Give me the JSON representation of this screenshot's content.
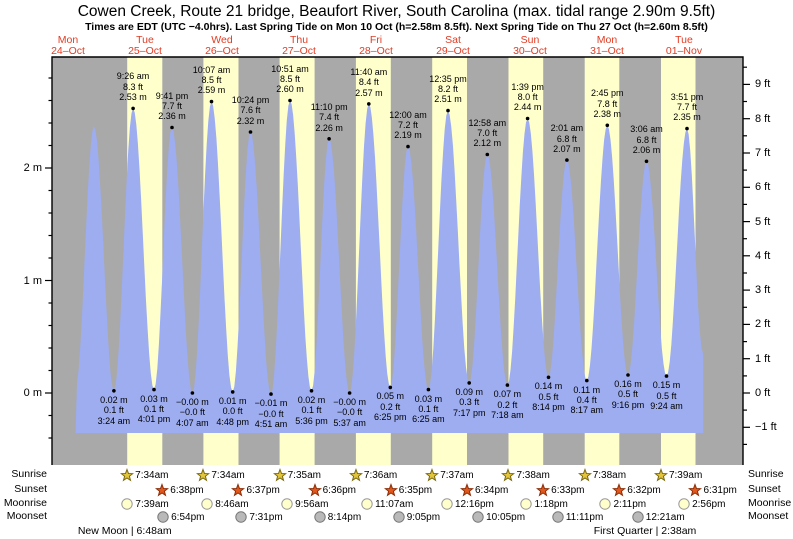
{
  "title": "Cowen Creek, Route 21 bridge, Beaufort River, South Carolina (max. tidal range 2.90m 9.5ft)",
  "subtitle": "Times are EDT (UTC −4.0hrs). Last Spring Tide on Mon 10 Oct (h=2.58m 8.5ft). Next Spring Tide on Thu 27 Oct (h=2.60m 8.5ft)",
  "days": [
    {
      "name": "Mon",
      "date": "24–Oct"
    },
    {
      "name": "Tue",
      "date": "25–Oct"
    },
    {
      "name": "Wed",
      "date": "26–Oct"
    },
    {
      "name": "Thu",
      "date": "27–Oct"
    },
    {
      "name": "Fri",
      "date": "28–Oct"
    },
    {
      "name": "Sat",
      "date": "29–Oct"
    },
    {
      "name": "Sun",
      "date": "30–Oct"
    },
    {
      "name": "Mon",
      "date": "31–Oct"
    },
    {
      "name": "Tue",
      "date": "01–Nov"
    }
  ],
  "axes": {
    "left_major": [
      {
        "label": "0 m",
        "v": 0
      },
      {
        "label": "1 m",
        "v": 1
      },
      {
        "label": "2 m",
        "v": 2
      }
    ],
    "right_major": [
      {
        "label": "−1 ft",
        "f": -1
      },
      {
        "label": "0 ft",
        "f": 0
      },
      {
        "label": "1 ft",
        "f": 1
      },
      {
        "label": "2 ft",
        "f": 2
      },
      {
        "label": "3 ft",
        "f": 3
      },
      {
        "label": "4 ft",
        "f": 4
      },
      {
        "label": "5 ft",
        "f": 5
      },
      {
        "label": "6 ft",
        "f": 6
      },
      {
        "label": "7 ft",
        "f": 7
      },
      {
        "label": "8 ft",
        "f": 8
      },
      {
        "label": "9 ft",
        "f": 9
      }
    ]
  },
  "chart_data": {
    "type": "area",
    "title": "Tide height curve, Mon 24-Oct noon through Tue 01-Nov",
    "ylabel_left": "meters",
    "ylabel_right": "feet",
    "ylim_m": [
      -0.36,
      2.99
    ],
    "t_unit": "hours after Mon 24-Oct 12:00",
    "highs": [
      {
        "time": "9:26 am",
        "ft": "8.3 ft",
        "m": "2.53 m",
        "t": 21.43,
        "v": 2.53
      },
      {
        "time": "9:41 pm",
        "ft": "7.7 ft",
        "m": "2.36 m",
        "t": 33.68,
        "v": 2.36
      },
      {
        "time": "10:07 am",
        "ft": "8.5 ft",
        "m": "2.59 m",
        "t": 46.12,
        "v": 2.59
      },
      {
        "time": "10:24 pm",
        "ft": "7.6 ft",
        "m": "2.32 m",
        "t": 58.4,
        "v": 2.32
      },
      {
        "time": "10:51 am",
        "ft": "8.5 ft",
        "m": "2.60 m",
        "t": 70.85,
        "v": 2.6
      },
      {
        "time": "11:10 pm",
        "ft": "7.4 ft",
        "m": "2.26 m",
        "t": 83.17,
        "v": 2.26
      },
      {
        "time": "11:40 am",
        "ft": "8.4 ft",
        "m": "2.57 m",
        "t": 95.67,
        "v": 2.57
      },
      {
        "time": "12:00 am",
        "ft": "7.2 ft",
        "m": "2.19 m",
        "t": 108.0,
        "v": 2.19
      },
      {
        "time": "12:35 pm",
        "ft": "8.2 ft",
        "m": "2.51 m",
        "t": 120.58,
        "v": 2.51
      },
      {
        "time": "12:58 am",
        "ft": "7.0 ft",
        "m": "2.12 m",
        "t": 132.97,
        "v": 2.12
      },
      {
        "time": "1:39 pm",
        "ft": "8.0 ft",
        "m": "2.44 m",
        "t": 145.65,
        "v": 2.44
      },
      {
        "time": "2:01 am",
        "ft": "6.8 ft",
        "m": "2.07 m",
        "t": 158.02,
        "v": 2.07
      },
      {
        "time": "2:45 pm",
        "ft": "7.8 ft",
        "m": "2.38 m",
        "t": 170.75,
        "v": 2.38
      },
      {
        "time": "3:06 am",
        "ft": "6.8 ft",
        "m": "2.06 m",
        "t": 183.1,
        "v": 2.06
      },
      {
        "time": "3:51 pm",
        "ft": "7.7 ft",
        "m": "2.35 m",
        "t": 195.85,
        "v": 2.35
      }
    ],
    "lows": [
      {
        "m": "0.02 m",
        "ft": "0.1 ft",
        "time": "3:24 am",
        "t": 15.4,
        "v": 0.02
      },
      {
        "m": "0.03 m",
        "ft": "0.1 ft",
        "time": "4:01 pm",
        "t": 28.02,
        "v": 0.03
      },
      {
        "m": "−0.00 m",
        "ft": "−0.0 ft",
        "time": "4:07 am",
        "t": 40.12,
        "v": 0.0
      },
      {
        "m": "0.01 m",
        "ft": "0.0 ft",
        "time": "4:48 pm",
        "t": 52.8,
        "v": 0.01
      },
      {
        "m": "−0.01 m",
        "ft": "−0.0 ft",
        "time": "4:51 am",
        "t": 64.85,
        "v": -0.01
      },
      {
        "m": "0.02 m",
        "ft": "0.1 ft",
        "time": "5:36 pm",
        "t": 77.6,
        "v": 0.02
      },
      {
        "m": "−0.00 m",
        "ft": "−0.0 ft",
        "time": "5:37 am",
        "t": 89.62,
        "v": 0.0
      },
      {
        "m": "0.05 m",
        "ft": "0.2 ft",
        "time": "6:25 pm",
        "t": 102.42,
        "v": 0.05
      },
      {
        "m": "0.03 m",
        "ft": "0.1 ft",
        "time": "6:25 am",
        "t": 114.42,
        "v": 0.03
      },
      {
        "m": "0.09 m",
        "ft": "0.3 ft",
        "time": "7:17 pm",
        "t": 127.28,
        "v": 0.09
      },
      {
        "m": "0.07 m",
        "ft": "0.2 ft",
        "time": "7:18 am",
        "t": 139.3,
        "v": 0.07
      },
      {
        "m": "0.14 m",
        "ft": "0.5 ft",
        "time": "8:14 pm",
        "t": 152.23,
        "v": 0.14
      },
      {
        "m": "0.11 m",
        "ft": "0.4 ft",
        "time": "8:17 am",
        "t": 164.28,
        "v": 0.11
      },
      {
        "m": "0.16 m",
        "ft": "0.5 ft",
        "time": "9:16 pm",
        "t": 177.27,
        "v": 0.16
      },
      {
        "m": "0.15 m",
        "ft": "0.5 ft",
        "time": "9:24 am",
        "t": 189.4,
        "v": 0.15
      }
    ],
    "unlabeled_points": [
      {
        "t": 3.3,
        "v": 0.05
      },
      {
        "t": 9.13,
        "v": 2.37
      },
      {
        "t": 200.9,
        "v": 0.35
      }
    ]
  },
  "astro": {
    "row_labels": [
      "Sunrise",
      "Sunset",
      "Moonrise",
      "Moonset"
    ],
    "sunrise": [
      {
        "time": "7:34am",
        "t": 19.57
      },
      {
        "time": "7:34am",
        "t": 43.57
      },
      {
        "time": "7:35am",
        "t": 67.58
      },
      {
        "time": "7:36am",
        "t": 91.6
      },
      {
        "time": "7:37am",
        "t": 115.62
      },
      {
        "time": "7:38am",
        "t": 139.63
      },
      {
        "time": "7:38am",
        "t": 163.63
      },
      {
        "time": "7:39am",
        "t": 187.65
      }
    ],
    "sunset": [
      {
        "time": "6:38pm",
        "t": 30.63
      },
      {
        "time": "6:37pm",
        "t": 54.62
      },
      {
        "time": "6:36pm",
        "t": 78.6
      },
      {
        "time": "6:35pm",
        "t": 102.58
      },
      {
        "time": "6:34pm",
        "t": 126.57
      },
      {
        "time": "6:33pm",
        "t": 150.55
      },
      {
        "time": "6:32pm",
        "t": 174.53
      },
      {
        "time": "6:31pm",
        "t": 198.52
      }
    ],
    "moonrise": [
      {
        "time": "7:39am",
        "t": 19.65
      },
      {
        "time": "8:46am",
        "t": 44.77
      },
      {
        "time": "9:56am",
        "t": 69.93
      },
      {
        "time": "11:07am",
        "t": 95.12
      },
      {
        "time": "12:16pm",
        "t": 120.27
      },
      {
        "time": "1:18pm",
        "t": 145.3
      },
      {
        "time": "2:11pm",
        "t": 170.18
      },
      {
        "time": "2:56pm",
        "t": 194.93
      }
    ],
    "moonset": [
      {
        "time": "6:54pm",
        "t": 30.9
      },
      {
        "time": "7:31pm",
        "t": 55.52
      },
      {
        "time": "8:14pm",
        "t": 80.23
      },
      {
        "time": "9:05pm",
        "t": 105.08
      },
      {
        "time": "10:05pm",
        "t": 130.08
      },
      {
        "time": "11:11pm",
        "t": 155.18
      },
      {
        "time": "12:21am",
        "t": 180.35
      }
    ],
    "phases": [
      {
        "label": "New Moon | 6:48am",
        "t": 18.8
      },
      {
        "label": "First Quarter | 2:38am",
        "t": 182.63
      }
    ]
  },
  "colors": {
    "night_band": "#a9a9a9",
    "day_band": "#ffffcc",
    "tide_fill": "#9dadf0",
    "date_red": "#e23b22",
    "sunrise_star": "#e3c53d",
    "sunrise_star_edge": "#7a6a10",
    "sunset_star": "#e2571b",
    "sunset_star_edge": "#8c2e08",
    "moonrise_fill": "#ffffcc",
    "moonrise_edge": "#999999",
    "moonset_fill": "#b9b9b9",
    "moonset_edge": "#777777"
  }
}
